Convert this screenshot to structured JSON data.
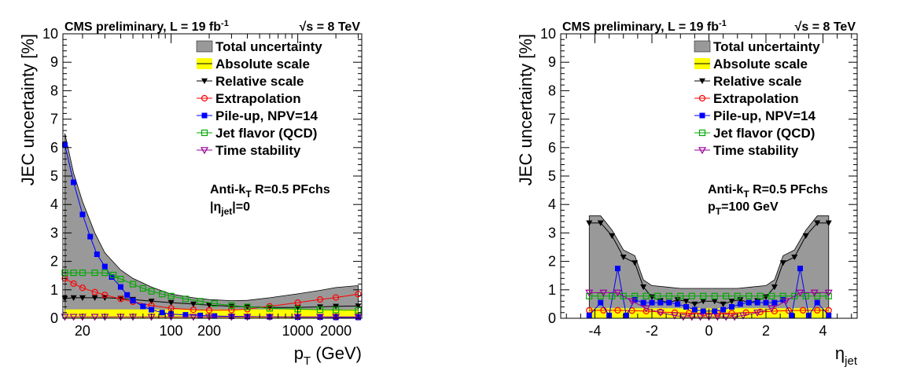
{
  "chart_data": [
    {
      "type": "line",
      "id": "pt",
      "header": {
        "experiment": "CMS preliminary, L = 19 fb",
        "lumi_sup": "-1",
        "energy": "√s = 8 TeV"
      },
      "ylabel": "JEC uncertainty [%]",
      "xlabel": {
        "main": "p",
        "sub": "T",
        "unit": " (GeV)"
      },
      "xscale": "log",
      "xlim": [
        14,
        3200
      ],
      "ylim": [
        0,
        10
      ],
      "yticks": [
        "0",
        "1",
        "2",
        "3",
        "4",
        "5",
        "6",
        "7",
        "8",
        "9",
        "10"
      ],
      "xticks": [
        {
          "value": 20,
          "label": "20"
        },
        {
          "value": 100,
          "label": "100"
        },
        {
          "value": 200,
          "label": "200"
        },
        {
          "value": 1000,
          "label": "1000"
        },
        {
          "value": 2000,
          "label": "2000"
        }
      ],
      "legend": {
        "placement": "top-right",
        "entries": [
          {
            "label": "Total uncertainty",
            "style": "band",
            "color": "#999999"
          },
          {
            "label": "Absolute scale",
            "style": "band",
            "color": "#ffff00"
          },
          {
            "label": "Relative scale",
            "style": "marker",
            "marker": "tri-down",
            "color": "#000000"
          },
          {
            "label": "Extrapolation",
            "style": "marker",
            "marker": "circle",
            "color": "#ff0000"
          },
          {
            "label": "Pile-up, NPV=14",
            "style": "marker",
            "marker": "square",
            "color": "#0000ff"
          },
          {
            "label": "Jet flavor (QCD)",
            "style": "marker",
            "marker": "square-open",
            "color": "#00aa00"
          },
          {
            "label": "Time stability",
            "style": "marker",
            "marker": "tri-open",
            "color": "#990099"
          }
        ]
      },
      "annotation": {
        "line1": "Anti-k",
        "line1_sub": "T",
        "line1_rest": " R=0.5 PFchs",
        "line2": "|η",
        "line2_sub": "jet",
        "line2_rest": "|=0"
      },
      "series": [
        {
          "name": "Total uncertainty",
          "kind": "band",
          "color": "#999999",
          "x": [
            14.5,
            17,
            20,
            25,
            30,
            40,
            50,
            70,
            100,
            150,
            200,
            300,
            400,
            600,
            1000,
            1500,
            2000,
            3000
          ],
          "y": [
            6.5,
            5.1,
            4.1,
            3.0,
            2.3,
            1.7,
            1.4,
            1.1,
            0.85,
            0.72,
            0.66,
            0.62,
            0.63,
            0.72,
            0.86,
            0.98,
            1.08,
            1.15
          ]
        },
        {
          "name": "Absolute scale",
          "kind": "band",
          "color": "#ffff00",
          "x": [
            14.5,
            3000
          ],
          "y": [
            0.31,
            0.31
          ]
        },
        {
          "name": "Relative scale",
          "marker": "tri-down",
          "color": "#000000",
          "x": [
            14.5,
            17,
            20,
            25,
            30,
            40,
            50,
            70,
            100,
            150,
            200,
            300,
            400,
            600,
            1000,
            1500,
            2000,
            3000
          ],
          "y": [
            0.7,
            0.72,
            0.72,
            0.72,
            0.72,
            0.7,
            0.66,
            0.6,
            0.55,
            0.5,
            0.46,
            0.42,
            0.4,
            0.38,
            0.38,
            0.4,
            0.42,
            0.43
          ]
        },
        {
          "name": "Extrapolation",
          "marker": "circle",
          "color": "#ff0000",
          "x": [
            14.5,
            17,
            20,
            25,
            30,
            40,
            50,
            70,
            100,
            150,
            200,
            300,
            400,
            600,
            1000,
            1500,
            2000,
            3000
          ],
          "y": [
            1.4,
            1.22,
            1.07,
            0.92,
            0.82,
            0.68,
            0.58,
            0.45,
            0.35,
            0.3,
            0.28,
            0.29,
            0.32,
            0.42,
            0.55,
            0.66,
            0.73,
            0.85
          ]
        },
        {
          "name": "Pile-up, NPV=14",
          "marker": "square",
          "color": "#0000ff",
          "x": [
            14.5,
            17,
            20,
            23,
            26,
            30,
            34,
            40,
            45,
            50,
            60,
            70,
            85,
            100,
            130,
            170,
            220,
            300,
            400,
            600,
            1000,
            1500,
            2000,
            3000
          ],
          "y": [
            6.1,
            4.78,
            3.65,
            2.87,
            2.25,
            1.82,
            1.45,
            1.1,
            0.82,
            0.62,
            0.42,
            0.3,
            0.2,
            0.15,
            0.12,
            0.1,
            0.08,
            0.07,
            0.06,
            0.05,
            0.04,
            0.04,
            0.03,
            0.03
          ]
        },
        {
          "name": "Jet flavor (QCD)",
          "marker": "square-open",
          "color": "#00aa00",
          "x": [
            14.5,
            17,
            20,
            25,
            30,
            35,
            40,
            50,
            60,
            70,
            85,
            100,
            130,
            170,
            220,
            300,
            400,
            600,
            1000,
            1500,
            2000,
            3000
          ],
          "y": [
            1.6,
            1.6,
            1.6,
            1.6,
            1.6,
            1.52,
            1.38,
            1.2,
            1.05,
            0.95,
            0.85,
            0.78,
            0.68,
            0.6,
            0.52,
            0.45,
            0.4,
            0.35,
            0.32,
            0.3,
            0.29,
            0.28
          ]
        },
        {
          "name": "Time stability",
          "marker": "tri-open",
          "color": "#990099",
          "x": [
            14.5,
            17,
            20,
            25,
            30,
            40,
            50,
            70,
            100,
            150,
            200,
            300,
            400,
            600,
            1000,
            1500,
            2000,
            3000
          ],
          "y": [
            0.05,
            0.05,
            0.05,
            0.05,
            0.05,
            0.05,
            0.05,
            0.05,
            0.05,
            0.05,
            0.05,
            0.05,
            0.05,
            0.05,
            0.05,
            0.05,
            0.05,
            0.05
          ]
        }
      ]
    },
    {
      "type": "line",
      "id": "eta",
      "header": {
        "experiment": "CMS preliminary, L = 19 fb",
        "lumi_sup": "-1",
        "energy": "√s = 8 TeV"
      },
      "ylabel": "JEC uncertainty [%]",
      "xlabel": {
        "main": "η",
        "sub": "jet",
        "unit": ""
      },
      "xscale": "linear",
      "xlim": [
        -5.2,
        5.2
      ],
      "ylim": [
        0,
        10
      ],
      "yticks": [
        "0",
        "1",
        "2",
        "3",
        "4",
        "5",
        "6",
        "7",
        "8",
        "9",
        "10"
      ],
      "xticks": [
        {
          "value": -4,
          "label": "-4"
        },
        {
          "value": -2,
          "label": "-2"
        },
        {
          "value": 0,
          "label": "0"
        },
        {
          "value": 2,
          "label": "2"
        },
        {
          "value": 4,
          "label": "4"
        }
      ],
      "legend": {
        "placement": "top-right",
        "entries": [
          {
            "label": "Total uncertainty",
            "style": "band",
            "color": "#999999"
          },
          {
            "label": "Absolute scale",
            "style": "band",
            "color": "#ffff00"
          },
          {
            "label": "Relative scale",
            "style": "marker",
            "marker": "tri-down",
            "color": "#000000"
          },
          {
            "label": "Extrapolation",
            "style": "marker",
            "marker": "circle",
            "color": "#ff0000"
          },
          {
            "label": "Pile-up, NPV=14",
            "style": "marker",
            "marker": "square",
            "color": "#0000ff"
          },
          {
            "label": "Jet flavor (QCD)",
            "style": "marker",
            "marker": "square-open",
            "color": "#00aa00"
          },
          {
            "label": "Time stability",
            "style": "marker",
            "marker": "tri-open",
            "color": "#990099"
          }
        ]
      },
      "annotation": {
        "line1": "Anti-k",
        "line1_sub": "T",
        "line1_rest": " R=0.5 PFchs",
        "line2": "p",
        "line2_sub": "T",
        "line2_rest": "=100 GeV"
      },
      "series": [
        {
          "name": "Total uncertainty",
          "kind": "band",
          "color": "#999999",
          "x": [
            -4.2,
            -3.8,
            -3.4,
            -3.0,
            -2.6,
            -2.3,
            -2.0,
            -1.5,
            -1.0,
            -0.5,
            0.0,
            0.5,
            1.0,
            1.5,
            2.0,
            2.3,
            2.6,
            3.0,
            3.4,
            3.8,
            4.2
          ],
          "y": [
            3.6,
            3.6,
            3.1,
            2.4,
            2.2,
            1.35,
            1.15,
            1.1,
            1.05,
            1.05,
            1.05,
            1.05,
            1.05,
            1.1,
            1.15,
            1.35,
            2.2,
            2.4,
            3.1,
            3.6,
            3.6
          ]
        },
        {
          "name": "Absolute scale",
          "kind": "band",
          "color": "#ffff00",
          "x": [
            -4.2,
            4.2
          ],
          "y": [
            0.35,
            0.35
          ]
        },
        {
          "name": "Relative scale",
          "marker": "tri-down",
          "color": "#000000",
          "x": [
            -4.2,
            -3.8,
            -3.4,
            -3.0,
            -2.6,
            -2.3,
            -2.0,
            -1.7,
            -1.4,
            -1.1,
            -0.8,
            -0.5,
            -0.2,
            0.2,
            0.5,
            0.8,
            1.1,
            1.4,
            1.7,
            2.0,
            2.3,
            2.6,
            3.0,
            3.4,
            3.8,
            4.2
          ],
          "y": [
            3.35,
            3.35,
            2.9,
            2.15,
            1.95,
            1.1,
            0.75,
            0.62,
            0.55,
            0.65,
            0.6,
            0.5,
            0.6,
            0.6,
            0.5,
            0.6,
            0.65,
            0.55,
            0.62,
            0.75,
            1.1,
            1.95,
            2.15,
            2.9,
            3.35,
            3.35
          ]
        },
        {
          "name": "Extrapolation",
          "marker": "circle",
          "color": "#ff0000",
          "x": [
            -4.2,
            -3.7,
            -3.2,
            -2.7,
            -2.2,
            -1.7,
            -1.2,
            -0.7,
            -0.2,
            0.3,
            0.8,
            1.3,
            1.8,
            2.3,
            2.8,
            3.3,
            3.8,
            4.2
          ],
          "y": [
            0.28,
            0.28,
            0.28,
            0.27,
            0.25,
            0.22,
            0.2,
            0.18,
            0.18,
            0.18,
            0.18,
            0.2,
            0.22,
            0.25,
            0.27,
            0.28,
            0.28,
            0.28
          ]
        },
        {
          "name": "Pile-up, NPV=14",
          "marker": "square",
          "color": "#0000ff",
          "x": [
            -4.2,
            -3.8,
            -3.5,
            -3.2,
            -2.9,
            -2.6,
            -2.3,
            -2.0,
            -1.7,
            -1.4,
            -1.1,
            -0.8,
            -0.5,
            -0.2,
            0.2,
            0.5,
            0.8,
            1.1,
            1.4,
            1.7,
            2.0,
            2.3,
            2.6,
            2.9,
            3.2,
            3.5,
            3.8,
            4.2
          ],
          "y": [
            0.1,
            0.55,
            0.1,
            1.75,
            0.1,
            0.65,
            0.55,
            0.55,
            0.55,
            0.55,
            0.5,
            0.4,
            0.3,
            0.25,
            0.25,
            0.3,
            0.4,
            0.5,
            0.55,
            0.55,
            0.55,
            0.55,
            0.65,
            0.1,
            1.75,
            0.1,
            0.55,
            0.1
          ]
        },
        {
          "name": "Jet flavor (QCD)",
          "marker": "square-open",
          "color": "#00aa00",
          "x": [
            -4.2,
            -3.8,
            -3.4,
            -3.0,
            -2.6,
            -2.2,
            -1.8,
            -1.4,
            -1.0,
            -0.6,
            -0.2,
            0.2,
            0.6,
            1.0,
            1.4,
            1.8,
            2.2,
            2.6,
            3.0,
            3.4,
            3.8,
            4.2
          ],
          "y": [
            0.78,
            0.78,
            0.78,
            0.78,
            0.78,
            0.78,
            0.78,
            0.78,
            0.78,
            0.78,
            0.78,
            0.78,
            0.78,
            0.78,
            0.78,
            0.78,
            0.78,
            0.78,
            0.78,
            0.78,
            0.78,
            0.78
          ]
        },
        {
          "name": "Time stability",
          "marker": "tri-open",
          "color": "#990099",
          "x": [
            -4.2,
            -3.7,
            -3.2,
            -2.7,
            -2.2,
            -1.7,
            -1.2,
            -0.9,
            -0.6,
            -0.3,
            0.0,
            0.3,
            0.6,
            0.9,
            1.2,
            1.7,
            2.2,
            2.7,
            3.2,
            3.7,
            4.2
          ],
          "y": [
            0.9,
            0.9,
            0.9,
            0.6,
            0.35,
            0.2,
            0.1,
            0.05,
            0.05,
            0.05,
            0.05,
            0.05,
            0.05,
            0.05,
            0.1,
            0.2,
            0.35,
            0.6,
            0.9,
            0.9,
            0.9
          ]
        }
      ]
    }
  ]
}
